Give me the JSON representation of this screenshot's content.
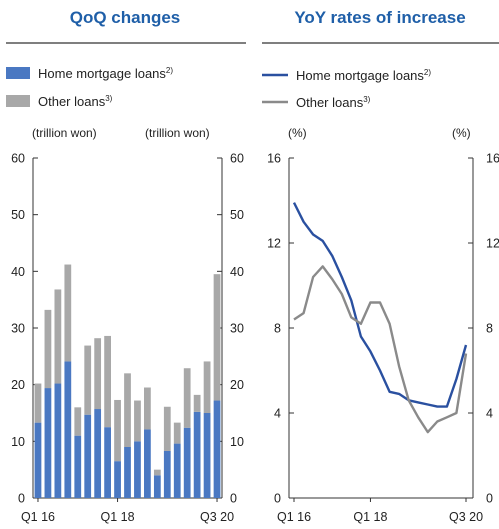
{
  "colors": {
    "title": "#1f5fa8",
    "home": "#4a78c2",
    "other": "#a8a8a8",
    "home_line": "#2a50a0",
    "other_line": "#8a8a8a"
  },
  "chart_data": [
    {
      "type": "bar",
      "stacked": true,
      "title": "QoQ changes",
      "legend": [
        {
          "name": "Home mortgage loans",
          "note": "2)"
        },
        {
          "name": "Other loans",
          "note": "3)"
        }
      ],
      "ylabel_left": "(trillion won)",
      "ylabel_right": "(trillion won)",
      "ylim": [
        0,
        60
      ],
      "yticks": [
        0,
        10,
        20,
        30,
        40,
        50,
        60
      ],
      "xtick_labels": [
        "Q1 16",
        "Q1 18",
        "Q3 20"
      ],
      "xtick_index": [
        0,
        8,
        18
      ],
      "categories": [
        "Q1 16",
        "Q2 16",
        "Q3 16",
        "Q4 16",
        "Q1 17",
        "Q2 17",
        "Q3 17",
        "Q4 17",
        "Q1 18",
        "Q2 18",
        "Q3 18",
        "Q4 18",
        "Q1 19",
        "Q2 19",
        "Q3 19",
        "Q4 19",
        "Q1 20",
        "Q2 20",
        "Q3 20"
      ],
      "series": [
        {
          "name": "Home mortgage loans",
          "values": [
            13.3,
            19.4,
            20.2,
            24.1,
            11.0,
            14.7,
            15.7,
            12.5,
            6.5,
            9.0,
            10.0,
            12.1,
            4.0,
            8.3,
            9.6,
            12.4,
            15.2,
            15.0,
            17.2
          ]
        },
        {
          "name": "Other loans",
          "values": [
            6.9,
            13.8,
            16.6,
            17.1,
            5.0,
            12.2,
            12.5,
            16.1,
            10.8,
            13.0,
            7.2,
            7.4,
            1.0,
            7.8,
            3.7,
            10.5,
            3.0,
            9.1,
            22.3
          ]
        }
      ]
    },
    {
      "type": "line",
      "title": "YoY rates of increase",
      "legend": [
        {
          "name": "Home mortgage loans",
          "note": "2)"
        },
        {
          "name": "Other loans",
          "note": "3)"
        }
      ],
      "ylabel_left": "(%)",
      "ylabel_right": "(%)",
      "ylim": [
        0,
        16
      ],
      "yticks": [
        0,
        4,
        8,
        12,
        16
      ],
      "xtick_labels": [
        "Q1 16",
        "Q1 18",
        "Q3 20"
      ],
      "xtick_index": [
        0,
        8,
        18
      ],
      "categories": [
        "Q1 16",
        "Q2 16",
        "Q3 16",
        "Q4 16",
        "Q1 17",
        "Q2 17",
        "Q3 17",
        "Q4 17",
        "Q1 18",
        "Q2 18",
        "Q3 18",
        "Q4 18",
        "Q1 19",
        "Q2 19",
        "Q3 19",
        "Q4 19",
        "Q1 20",
        "Q2 20",
        "Q3 20"
      ],
      "series": [
        {
          "name": "Home mortgage loans",
          "values": [
            13.9,
            13.0,
            12.4,
            12.1,
            11.4,
            10.4,
            9.3,
            7.6,
            6.9,
            6.0,
            5.0,
            4.9,
            4.6,
            4.5,
            4.4,
            4.3,
            4.3,
            5.6,
            7.2
          ]
        },
        {
          "name": "Other loans",
          "values": [
            8.4,
            8.7,
            10.4,
            10.9,
            10.3,
            9.6,
            8.5,
            8.2,
            9.2,
            9.2,
            8.2,
            6.2,
            4.6,
            3.8,
            3.1,
            3.6,
            3.8,
            4.0,
            6.8
          ]
        }
      ]
    }
  ]
}
